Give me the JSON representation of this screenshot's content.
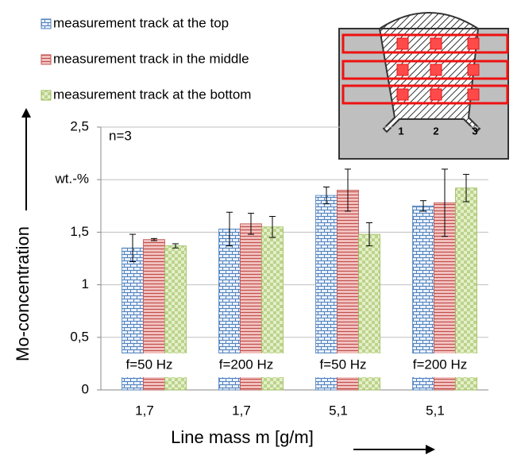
{
  "chart_data": {
    "type": "bar",
    "ylabel": "Mo-concentration",
    "xlabel": "Line mass m [g/m]",
    "note": "n=3",
    "categories": [
      "1,7",
      "1,7",
      "5,1",
      "5,1"
    ],
    "annotations": [
      "f=50 Hz",
      "f=200 Hz",
      "f=50 Hz",
      "f=200 Hz"
    ],
    "series": [
      {
        "name": "measurement track at the top",
        "color": "#4f81bd",
        "background": "#eaf1fb",
        "values": [
          1.35,
          1.53,
          1.85,
          1.75
        ],
        "errors": [
          0.13,
          0.16,
          0.08,
          0.05
        ]
      },
      {
        "name": "measurement track in the middle",
        "color": "#c0504d",
        "background": "#f4c7c5",
        "values": [
          1.43,
          1.58,
          1.9,
          1.78
        ],
        "errors": [
          0.01,
          0.1,
          0.2,
          0.32
        ]
      },
      {
        "name": "measurement track at the bottom",
        "color": "#9bbb59",
        "background": "#e4efc9",
        "values": [
          1.37,
          1.55,
          1.48,
          1.92
        ],
        "errors": [
          0.02,
          0.1,
          0.11,
          0.13
        ]
      }
    ],
    "ylim": [
      0,
      2.5
    ],
    "yticks": [
      {
        "value": 0,
        "label": "0"
      },
      {
        "value": 0.5,
        "label": "0,5"
      },
      {
        "value": 1,
        "label": "1"
      },
      {
        "value": 1.5,
        "label": "1,5"
      },
      {
        "value": 2,
        "label": "wt.-%"
      },
      {
        "value": 2.5,
        "label": "2,5"
      }
    ],
    "grid": true,
    "inset_labels": [
      "1",
      "2",
      "3"
    ]
  }
}
